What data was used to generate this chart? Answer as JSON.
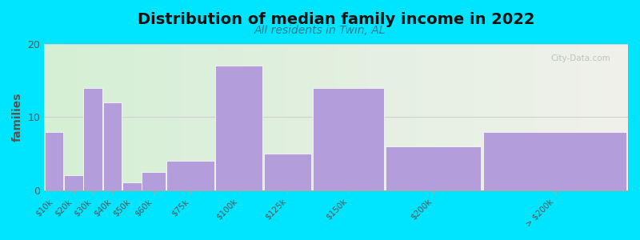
{
  "title": "Distribution of median family income in 2022",
  "subtitle": "All residents in Twin, AL",
  "bar_lefts": [
    0,
    10,
    20,
    30,
    40,
    50,
    62.5,
    87.5,
    112.5,
    137.5,
    175,
    225
  ],
  "bar_widths": [
    10,
    10,
    10,
    10,
    10,
    12.5,
    25,
    25,
    25,
    37.5,
    50,
    75
  ],
  "values": [
    8,
    2,
    14,
    12,
    1,
    2.5,
    4,
    17,
    5,
    14,
    6,
    8
  ],
  "tick_positions": [
    5,
    15,
    25,
    35,
    45,
    56.25,
    75,
    100,
    125,
    156.25,
    200,
    262.5
  ],
  "tick_labels": [
    "$10k",
    "$20k",
    "$30k",
    "$40k",
    "$50k",
    "$60k",
    "$75k",
    "$100k",
    "$125k",
    "$150k",
    "$200k",
    "> $200k"
  ],
  "bar_color": "#b39ddb",
  "ylabel": "families",
  "ylim": [
    0,
    20
  ],
  "yticks": [
    0,
    10,
    20
  ],
  "xlim": [
    0,
    300
  ],
  "bg_left_color": "#d4efd4",
  "bg_right_color": "#f0f0eb",
  "background_outer": "#00e5ff",
  "grid_color": "#d0d0d0",
  "title_fontsize": 14,
  "subtitle_fontsize": 10,
  "subtitle_color": "#2a7d8c",
  "watermark": "City-Data.com"
}
